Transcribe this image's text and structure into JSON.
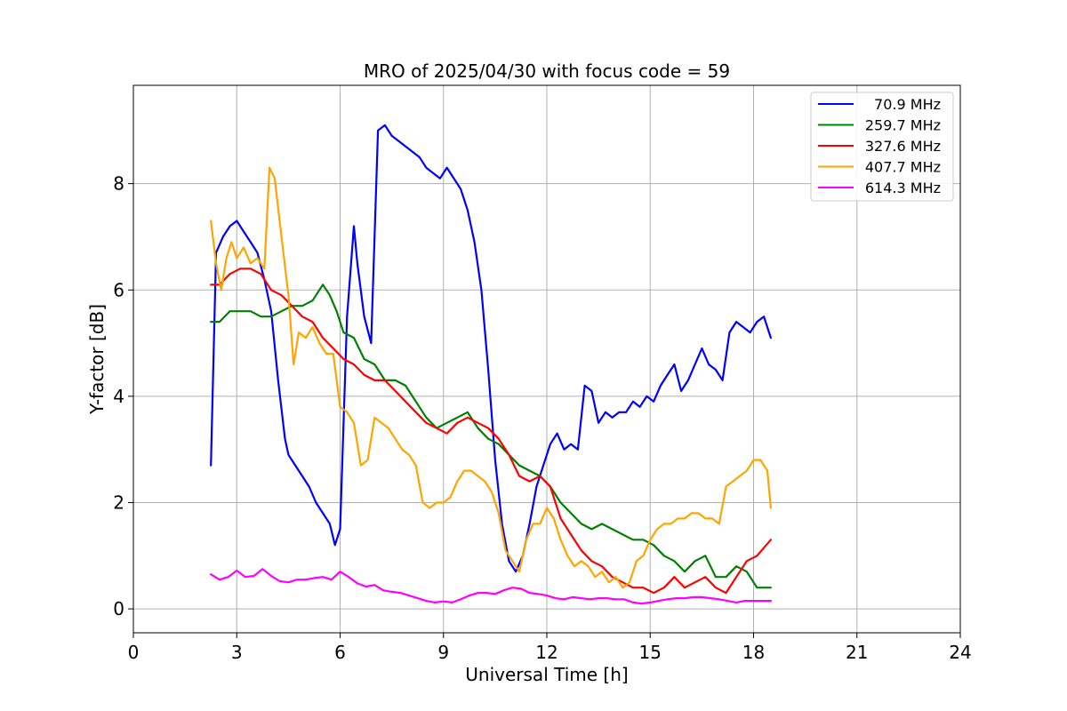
{
  "chart_data": {
    "type": "line",
    "title": "MRO of 2025/04/30 with focus code = 59",
    "xlabel": "Universal Time [h]",
    "ylabel": "Y-factor [dB]",
    "xlim": [
      0,
      24
    ],
    "ylim": [
      -0.45,
      9.85
    ],
    "xticks": [
      0,
      3,
      6,
      9,
      12,
      15,
      18,
      21,
      24
    ],
    "yticks": [
      0,
      2,
      4,
      6,
      8
    ],
    "grid": true,
    "legend_position": "top-right",
    "series": [
      {
        "name": "70.9 MHz",
        "color": "#0000ff",
        "x": [
          2.25,
          2.4,
          2.6,
          2.8,
          3.0,
          3.2,
          3.4,
          3.6,
          3.8,
          4.0,
          4.2,
          4.4,
          4.5,
          4.7,
          4.9,
          5.1,
          5.3,
          5.5,
          5.7,
          5.85,
          6.0,
          6.2,
          6.4,
          6.5,
          6.7,
          6.9,
          7.1,
          7.3,
          7.5,
          7.7,
          7.9,
          8.1,
          8.3,
          8.5,
          8.7,
          8.9,
          9.1,
          9.3,
          9.5,
          9.7,
          9.9,
          10.1,
          10.3,
          10.5,
          10.7,
          10.9,
          11.1,
          11.3,
          11.5,
          11.7,
          11.9,
          12.1,
          12.3,
          12.5,
          12.7,
          12.9,
          13.1,
          13.3,
          13.5,
          13.7,
          13.9,
          14.1,
          14.3,
          14.5,
          14.7,
          14.9,
          15.1,
          15.3,
          15.5,
          15.7,
          15.9,
          16.1,
          16.3,
          16.5,
          16.7,
          16.9,
          17.1,
          17.3,
          17.5,
          17.7,
          17.9,
          18.1,
          18.3,
          18.5
        ],
        "values": [
          2.7,
          6.7,
          7.0,
          7.2,
          7.3,
          7.1,
          6.9,
          6.7,
          6.2,
          5.6,
          4.3,
          3.2,
          2.9,
          2.7,
          2.5,
          2.3,
          2.0,
          1.8,
          1.6,
          1.2,
          1.5,
          5.5,
          7.2,
          6.5,
          5.5,
          5.0,
          9.0,
          9.1,
          8.9,
          8.8,
          8.7,
          8.6,
          8.5,
          8.3,
          8.2,
          8.1,
          8.3,
          8.1,
          7.9,
          7.5,
          6.9,
          6.0,
          4.5,
          2.8,
          1.6,
          0.9,
          0.7,
          1.0,
          1.6,
          2.3,
          2.7,
          3.1,
          3.3,
          3.0,
          3.1,
          3.0,
          4.2,
          4.1,
          3.5,
          3.7,
          3.6,
          3.7,
          3.7,
          3.9,
          3.8,
          4.0,
          3.9,
          4.2,
          4.4,
          4.6,
          4.1,
          4.3,
          4.6,
          4.9,
          4.6,
          4.5,
          4.3,
          5.2,
          5.4,
          5.3,
          5.2,
          5.4,
          5.5,
          5.1
        ]
      },
      {
        "name": "259.7 MHz",
        "color": "#008000",
        "x": [
          2.25,
          2.5,
          2.8,
          3.1,
          3.4,
          3.7,
          4.0,
          4.3,
          4.6,
          4.9,
          5.2,
          5.5,
          5.7,
          5.9,
          6.1,
          6.4,
          6.7,
          7.0,
          7.3,
          7.6,
          7.9,
          8.2,
          8.5,
          8.8,
          9.1,
          9.4,
          9.7,
          10.0,
          10.3,
          10.6,
          10.9,
          11.2,
          11.5,
          11.8,
          12.1,
          12.4,
          12.7,
          13.0,
          13.3,
          13.6,
          13.9,
          14.2,
          14.5,
          14.8,
          15.1,
          15.4,
          15.7,
          16.0,
          16.3,
          16.6,
          16.9,
          17.2,
          17.5,
          17.8,
          18.1,
          18.5
        ],
        "values": [
          5.4,
          5.4,
          5.6,
          5.6,
          5.6,
          5.5,
          5.5,
          5.6,
          5.7,
          5.7,
          5.8,
          6.1,
          5.9,
          5.6,
          5.2,
          5.1,
          4.7,
          4.6,
          4.3,
          4.3,
          4.2,
          3.9,
          3.6,
          3.4,
          3.5,
          3.6,
          3.7,
          3.4,
          3.2,
          3.1,
          2.9,
          2.7,
          2.6,
          2.5,
          2.3,
          2.0,
          1.8,
          1.6,
          1.5,
          1.6,
          1.5,
          1.4,
          1.3,
          1.3,
          1.2,
          1.0,
          0.9,
          0.7,
          0.9,
          1.0,
          0.6,
          0.6,
          0.8,
          0.7,
          0.4,
          0.4
        ]
      },
      {
        "name": "327.6 MHz",
        "color": "#ff0000",
        "x": [
          2.25,
          2.5,
          2.8,
          3.1,
          3.4,
          3.7,
          4.0,
          4.3,
          4.6,
          4.9,
          5.2,
          5.5,
          5.8,
          6.1,
          6.4,
          6.7,
          7.0,
          7.3,
          7.6,
          7.9,
          8.2,
          8.5,
          8.8,
          9.1,
          9.4,
          9.7,
          10.0,
          10.3,
          10.6,
          10.9,
          11.2,
          11.5,
          11.8,
          12.1,
          12.4,
          12.7,
          13.0,
          13.3,
          13.6,
          13.9,
          14.2,
          14.5,
          14.8,
          15.1,
          15.4,
          15.7,
          16.0,
          16.3,
          16.6,
          16.9,
          17.2,
          17.5,
          17.8,
          18.1,
          18.5
        ],
        "values": [
          6.1,
          6.1,
          6.3,
          6.4,
          6.4,
          6.3,
          6.0,
          5.9,
          5.7,
          5.5,
          5.4,
          5.1,
          4.9,
          4.7,
          4.6,
          4.4,
          4.3,
          4.3,
          4.1,
          3.9,
          3.7,
          3.5,
          3.4,
          3.3,
          3.5,
          3.6,
          3.5,
          3.4,
          3.2,
          2.9,
          2.5,
          2.4,
          2.5,
          2.3,
          1.7,
          1.4,
          1.1,
          0.9,
          0.8,
          0.6,
          0.5,
          0.4,
          0.4,
          0.3,
          0.4,
          0.6,
          0.4,
          0.5,
          0.6,
          0.4,
          0.3,
          0.6,
          0.9,
          1.0,
          1.3
        ]
      },
      {
        "name": "407.7 MHz",
        "color": "#ffa500",
        "x": [
          2.25,
          2.4,
          2.55,
          2.7,
          2.85,
          3.0,
          3.2,
          3.4,
          3.6,
          3.8,
          3.95,
          4.1,
          4.3,
          4.5,
          4.65,
          4.8,
          5.0,
          5.2,
          5.4,
          5.6,
          5.8,
          6.0,
          6.2,
          6.4,
          6.6,
          6.8,
          7.0,
          7.2,
          7.4,
          7.6,
          7.8,
          8.0,
          8.2,
          8.4,
          8.6,
          8.8,
          9.0,
          9.2,
          9.4,
          9.6,
          9.8,
          10.0,
          10.2,
          10.4,
          10.6,
          10.8,
          11.0,
          11.2,
          11.4,
          11.6,
          11.8,
          12.0,
          12.2,
          12.4,
          12.6,
          12.8,
          13.0,
          13.2,
          13.4,
          13.6,
          13.8,
          14.0,
          14.2,
          14.4,
          14.6,
          14.8,
          15.0,
          15.2,
          15.4,
          15.6,
          15.8,
          16.0,
          16.2,
          16.4,
          16.6,
          16.8,
          17.0,
          17.2,
          17.4,
          17.6,
          17.8,
          18.0,
          18.2,
          18.4,
          18.5
        ],
        "values": [
          7.3,
          6.5,
          6.0,
          6.6,
          6.9,
          6.6,
          6.8,
          6.5,
          6.6,
          6.4,
          8.3,
          8.1,
          7.0,
          5.9,
          4.6,
          5.2,
          5.1,
          5.3,
          5.0,
          4.8,
          4.8,
          3.8,
          3.7,
          3.5,
          2.7,
          2.8,
          3.6,
          3.5,
          3.4,
          3.2,
          3.0,
          2.9,
          2.7,
          2.0,
          1.9,
          2.0,
          2.0,
          2.1,
          2.4,
          2.6,
          2.6,
          2.5,
          2.4,
          2.2,
          1.8,
          1.1,
          0.9,
          0.7,
          1.3,
          1.6,
          1.6,
          1.9,
          1.7,
          1.3,
          1.0,
          0.8,
          0.9,
          0.8,
          0.6,
          0.7,
          0.5,
          0.6,
          0.4,
          0.5,
          0.9,
          1.0,
          1.3,
          1.5,
          1.6,
          1.6,
          1.7,
          1.7,
          1.8,
          1.8,
          1.7,
          1.7,
          1.6,
          2.3,
          2.4,
          2.5,
          2.6,
          2.8,
          2.8,
          2.6,
          1.9
        ]
      },
      {
        "name": "614.3 MHz",
        "color": "#ff00ff",
        "x": [
          2.25,
          2.5,
          2.75,
          3.0,
          3.25,
          3.5,
          3.75,
          4.0,
          4.25,
          4.5,
          4.75,
          5.0,
          5.25,
          5.5,
          5.75,
          6.0,
          6.25,
          6.5,
          6.75,
          7.0,
          7.25,
          7.5,
          7.75,
          8.0,
          8.25,
          8.5,
          8.75,
          9.0,
          9.25,
          9.5,
          9.75,
          10.0,
          10.25,
          10.5,
          10.75,
          11.0,
          11.25,
          11.5,
          11.75,
          12.0,
          12.25,
          12.5,
          12.75,
          13.0,
          13.25,
          13.5,
          13.75,
          14.0,
          14.25,
          14.5,
          14.75,
          15.0,
          15.25,
          15.5,
          15.75,
          16.0,
          16.25,
          16.5,
          16.75,
          17.0,
          17.25,
          17.5,
          17.75,
          18.0,
          18.25,
          18.5
        ],
        "values": [
          0.65,
          0.55,
          0.6,
          0.72,
          0.6,
          0.62,
          0.75,
          0.62,
          0.52,
          0.5,
          0.55,
          0.55,
          0.58,
          0.6,
          0.55,
          0.7,
          0.6,
          0.48,
          0.42,
          0.45,
          0.35,
          0.32,
          0.3,
          0.25,
          0.2,
          0.15,
          0.12,
          0.14,
          0.12,
          0.18,
          0.25,
          0.3,
          0.3,
          0.28,
          0.35,
          0.4,
          0.38,
          0.3,
          0.28,
          0.25,
          0.2,
          0.18,
          0.22,
          0.2,
          0.18,
          0.2,
          0.2,
          0.18,
          0.18,
          0.12,
          0.1,
          0.12,
          0.15,
          0.18,
          0.2,
          0.2,
          0.22,
          0.22,
          0.2,
          0.18,
          0.15,
          0.12,
          0.15,
          0.15,
          0.15,
          0.15
        ]
      }
    ]
  }
}
